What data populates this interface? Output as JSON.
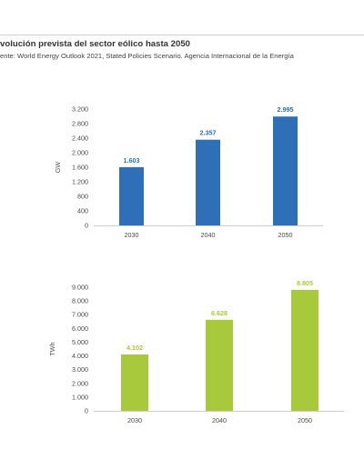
{
  "figure": {
    "title": "volución prevista del sector eólico hasta 2050",
    "subtitle": "ente: World Energy Outlook 2021, Stated Policies Scenario. Agencia Internacional de la Energía"
  },
  "chart_data": [
    {
      "type": "bar",
      "categories": [
        "2030",
        "2040",
        "2050"
      ],
      "values": [
        1603,
        2357,
        2995
      ],
      "value_labels": [
        "1.603",
        "2.357",
        "2.995"
      ],
      "ylabel": "GW",
      "ylim": [
        0,
        3200
      ],
      "yticks": [
        0,
        400,
        800,
        1200,
        1600,
        2000,
        2400,
        2800,
        3200
      ],
      "ytick_labels": [
        "0",
        "400",
        "800",
        "1.200",
        "1.600",
        "2.000",
        "2.400",
        "2.800",
        "3.200"
      ],
      "color": "#2e6fb7",
      "grid": false,
      "legend": "none"
    },
    {
      "type": "bar",
      "categories": [
        "2030",
        "2040",
        "2050"
      ],
      "values": [
        4102,
        6628,
        8805
      ],
      "value_labels": [
        "4.102",
        "6.628",
        "8.805"
      ],
      "ylabel": "TWh",
      "ylim": [
        0,
        9000
      ],
      "yticks": [
        0,
        1000,
        2000,
        3000,
        4000,
        5000,
        6000,
        7000,
        8000,
        9000
      ],
      "ytick_labels": [
        "0",
        "1.000",
        "2.000",
        "3.000",
        "4.000",
        "5.000",
        "6.000",
        "7.000",
        "8.000",
        "9.000"
      ],
      "color": "#a7c93b",
      "grid": false,
      "legend": "none"
    }
  ]
}
